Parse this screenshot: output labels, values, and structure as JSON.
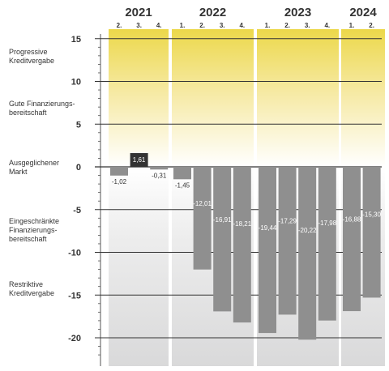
{
  "chart_data": {
    "type": "bar",
    "years": [
      {
        "label": "2021",
        "quarters": [
          "2.",
          "3.",
          "4."
        ]
      },
      {
        "label": "2022",
        "quarters": [
          "1.",
          "2.",
          "3.",
          "4."
        ]
      },
      {
        "label": "2023",
        "quarters": [
          "1.",
          "2.",
          "3.",
          "4."
        ]
      },
      {
        "label": "2024",
        "quarters": [
          "1.",
          "2."
        ]
      }
    ],
    "values": [
      -1.02,
      1.61,
      -0.31,
      -1.45,
      -12.01,
      -16.91,
      -18.21,
      -19.44,
      -17.29,
      -20.22,
      -17.98,
      -16.88,
      -15.3
    ],
    "value_labels": [
      "-1,02",
      "1,61",
      "-0,31",
      "-1,45",
      "-12,01",
      "-16,91",
      "-18,21",
      "-19,44",
      "-17,29",
      "-20,22",
      "-17,98",
      "-16,88",
      "-15,30"
    ],
    "y_ticks": [
      15,
      10,
      5,
      0,
      -5,
      -10,
      -15,
      -20
    ],
    "y_tick_labels": [
      "15",
      "10",
      "5",
      "0",
      "-5",
      "-10",
      "-15",
      "-20"
    ],
    "ylim": [
      -22,
      15.5
    ],
    "zones": [
      {
        "label": "Progressive Kreditvergabe"
      },
      {
        "label": "Gute Finanzierungs-bereitschaft"
      },
      {
        "label": "Ausgeglichener Markt"
      },
      {
        "label": "Eingeschränkte Finanzierungs-bereitschaft"
      },
      {
        "label": "Restriktive Kreditvergabe"
      }
    ],
    "colors": {
      "bar_negative": "#8f8f8f",
      "bar_positive": "#333333",
      "positive_zone": "#ecd84a",
      "negative_zone": "#d9d9da",
      "gridline": "#333333"
    }
  }
}
